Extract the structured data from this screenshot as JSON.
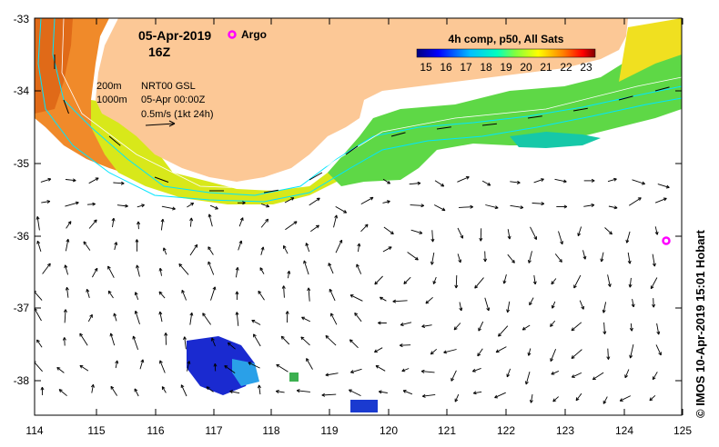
{
  "header": {
    "date": "05-Apr-2019",
    "hour": "16Z",
    "argo_label": "Argo",
    "composite_label": "4h comp, p50, All Sats"
  },
  "legend": {
    "contour_200": "200m",
    "contour_1000": "1000m",
    "current_source": "NRT00 GSL",
    "current_time": "05-Apr 00:00Z",
    "arrow_scale": "0.5m/s (1kt 24h)"
  },
  "colorbar": {
    "ticks": [
      "15",
      "16",
      "17",
      "18",
      "19",
      "20",
      "21",
      "22",
      "23"
    ],
    "colors": [
      "#00007f",
      "#0000ff",
      "#007fff",
      "#00ffff",
      "#7fff7f",
      "#ffff00",
      "#ff7f00",
      "#ff0000",
      "#7f0000"
    ]
  },
  "axes": {
    "lon_labels": [
      "114",
      "115",
      "116",
      "117",
      "118",
      "119",
      "120",
      "121",
      "122",
      "123",
      "124",
      "125"
    ],
    "lat_labels": [
      "-33",
      "-34",
      "-35",
      "-36",
      "-37",
      "-38"
    ]
  },
  "colors": {
    "land": "#fcc896",
    "contour": "#00e5ff",
    "argo": "#ff00ff"
  },
  "argo_float": {
    "lon": 124.75,
    "lat": -36.07
  },
  "credit": "© IMOS 10-Apr-2019 15:01 Hobart"
}
